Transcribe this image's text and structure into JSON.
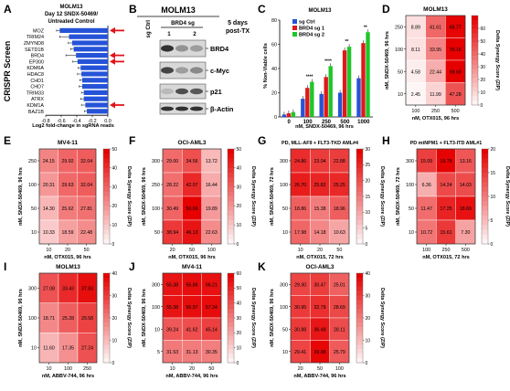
{
  "colors": {
    "bar_blue": "#2553d8",
    "bar_red": "#e01818",
    "bar_green": "#1ec62a",
    "arrow": "#e0141a",
    "hm_high": "#e60000",
    "hm_low": "#ffffff"
  },
  "panel_letters": {
    "a": "A",
    "b": "B",
    "c": "C",
    "d": "D",
    "e": "E",
    "f": "F",
    "g": "G",
    "h": "H",
    "i": "I",
    "j": "J",
    "k": "K"
  },
  "colorbar_label": "Delta Synergy Score (ZIP)",
  "chart_data": [
    {
      "panel": "A",
      "type": "bar",
      "orientation": "horizontal",
      "title": "MOLM13",
      "subtitle_1": "Day 12 SNDX-50469/",
      "subtitle_2": "Untreated Control",
      "ylabel": "CRISPR Screen",
      "xlabel": "Log2 fold-change in sgRNA reads",
      "xticks": [
        "-0.8",
        "-0.6",
        "-0.4",
        "-0.2",
        "0.0"
      ],
      "xlim": [
        -0.8,
        0.0
      ],
      "categories": [
        "MOZ",
        "TRIM24",
        "ZMYND8",
        "SETD1B",
        "BRD4",
        "EP300",
        "KDM6A",
        "HDAC8",
        "CHD1",
        "CHD7",
        "TRIM33",
        "ATRX",
        "KDM1A",
        "BAZ1B"
      ],
      "values": [
        -0.62,
        -0.5,
        -0.46,
        -0.44,
        -0.41,
        -0.39,
        -0.35,
        -0.34,
        -0.33,
        -0.33,
        -0.31,
        -0.31,
        -0.29,
        -0.27
      ],
      "errors": [
        0.04,
        0.12,
        0.05,
        0.04,
        0.13,
        0.06,
        0.03,
        0.05,
        0.03,
        0.04,
        0.03,
        0.04,
        0.05,
        0.03
      ],
      "arrows_on": [
        "MOZ",
        "BRD4",
        "EP300",
        "KDM1A"
      ]
    },
    {
      "panel": "B",
      "type": "blot",
      "title": "MOLM13",
      "lanes": [
        "sg Ctrl",
        "BRD4 sg"
      ],
      "lane_nums": [
        "1",
        "2"
      ],
      "note_1": "5 days",
      "note_2": "post-TX",
      "bands": [
        "BRD4",
        "c-Myc",
        "p21",
        "β-Actin"
      ]
    },
    {
      "panel": "C",
      "type": "bar",
      "title": "MOLM13",
      "ylabel": "% Non-Viable cells",
      "xlabel": "nM, SNDX-50469, 96 hrs",
      "categories": [
        "0",
        "100",
        "250",
        "500",
        "1000"
      ],
      "ylim": [
        0,
        80
      ],
      "yticks": [
        "0",
        "20",
        "40",
        "60",
        "80"
      ],
      "series": [
        {
          "name": "sg Ctrl",
          "values": [
            2,
            15,
            19,
            20,
            32
          ]
        },
        {
          "name": "BRD4 sg 1",
          "values": [
            3,
            24,
            33,
            55,
            61
          ]
        },
        {
          "name": "BRD4 sg 2",
          "values": [
            4,
            29,
            42,
            58,
            70
          ]
        }
      ],
      "significance": [
        "",
        "****",
        "****",
        "**",
        "**"
      ]
    },
    {
      "panel": "D",
      "type": "heatmap",
      "title": "MOLM13",
      "ylabel": "nM, SNDX-50469, 96 hrs",
      "xlabel": "nM, OTX015, 96 hrs",
      "x": [
        "100",
        "250",
        "500"
      ],
      "y": [
        "250",
        "100",
        "50",
        "10"
      ],
      "z": [
        [
          8.89,
          41.61,
          68.77
        ],
        [
          8.11,
          33.95,
          70.16
        ],
        [
          4.58,
          22.44,
          69.6
        ],
        [
          2.45,
          11.99,
          47.28
        ]
      ],
      "zlim": [
        0,
        70
      ],
      "cbticks": [
        "0",
        "10",
        "20",
        "30",
        "40",
        "50",
        "60"
      ]
    },
    {
      "panel": "E",
      "type": "heatmap",
      "title": "MV4-11",
      "ylabel": "nM, SNDX-50469, 96 hrs",
      "xlabel": "nM, OTX015, 96 hrs",
      "x": [
        "10",
        "20",
        "50"
      ],
      "y": [
        "250",
        "100",
        "50",
        "10"
      ],
      "z": [
        [
          24.15,
          29.92,
          32.04
        ],
        [
          20.31,
          29.63,
          32.04
        ],
        [
          14.3,
          25.62,
          27.81
        ],
        [
          10.33,
          18.59,
          22.48
        ]
      ],
      "zlim": [
        0,
        50
      ],
      "cbticks": [
        "0",
        "10",
        "20",
        "30",
        "40",
        "50"
      ]
    },
    {
      "panel": "F",
      "type": "heatmap",
      "title": "OCI-AML3",
      "ylabel": "nM, SNDX-50469, 96 hrs",
      "xlabel": "nM, OTX015, 96 hrs",
      "x": [
        "20",
        "50",
        "100"
      ],
      "y": [
        "300",
        "250",
        "100",
        "50"
      ],
      "z": [
        [
          29.0,
          34.56,
          13.72
        ],
        [
          28.22,
          42.07,
          16.44
        ],
        [
          30.49,
          50.06,
          19.89
        ],
        [
          38.94,
          46.13,
          22.63
        ]
      ],
      "zlim": [
        0,
        50
      ],
      "cbticks": [
        "0",
        "10",
        "20",
        "30",
        "40",
        "50"
      ]
    },
    {
      "panel": "G",
      "type": "heatmap",
      "title": "PD, MLL-AF9 + FLT3-TKD AML#4",
      "ylabel": "nM, SNDX-50469, 72 hrs",
      "xlabel": "nM, OTX015, 72 hrs",
      "x": [
        "10",
        "20",
        "50"
      ],
      "y": [
        "300",
        "100",
        "50",
        "10"
      ],
      "z": [
        [
          24.86,
          23.04,
          22.88
        ],
        [
          26.7,
          25.82,
          25.25
        ],
        [
          18.86,
          15.38,
          18.96
        ],
        [
          17.98,
          14.18,
          10.63
        ]
      ],
      "zlim": [
        0,
        30
      ],
      "cbticks": [
        "0",
        "5",
        "10",
        "15",
        "20",
        "25",
        "30"
      ]
    },
    {
      "panel": "H",
      "type": "heatmap",
      "title": "PD mtNPM1 + FLT3-ITD AML#1",
      "ylabel": "nM, SNDX-50469, 72 hrs",
      "xlabel": "nM, OTX015, 72 hrs",
      "x": [
        "100",
        "250",
        "500"
      ],
      "y": [
        "300",
        "100",
        "50",
        "10"
      ],
      "z": [
        [
          15.09,
          19.75,
          13.16
        ],
        [
          6.36,
          14.24,
          14.03
        ],
        [
          11.47,
          17.25,
          18.69
        ],
        [
          10.72,
          15.61,
          7.3
        ]
      ],
      "zlim": [
        0,
        20
      ],
      "cbticks": [
        "0",
        "5",
        "10",
        "15",
        "20"
      ]
    },
    {
      "panel": "I",
      "type": "heatmap",
      "title": "MOLM13",
      "ylabel": "nM, SNDX-50469, 96 hrs",
      "xlabel": "nM, ABBV-744, 96 hrs",
      "x": [
        "10",
        "100",
        "250"
      ],
      "y": [
        "300",
        "100",
        "10"
      ],
      "z": [
        [
          27.08,
          33.43,
          37.83
        ],
        [
          18.71,
          25.28,
          29.58
        ],
        [
          11.6,
          17.35,
          27.24
        ]
      ],
      "zlim": [
        0,
        40
      ],
      "cbticks": [
        "0",
        "10",
        "20",
        "30",
        "40"
      ]
    },
    {
      "panel": "J",
      "type": "heatmap",
      "title": "MV4-11",
      "ylabel": "nM, SNDX-50469, 96 hrs",
      "xlabel": "nM, ABBV-744, 96 hrs",
      "x": [
        "10",
        "20",
        "50"
      ],
      "y": [
        "300",
        "100",
        "10",
        "5"
      ],
      "z": [
        [
          55.38,
          56.86,
          56.21
        ],
        [
          55.38,
          56.97,
          57.34
        ],
        [
          39.24,
          41.62,
          45.14
        ],
        [
          31.53,
          31.13,
          30.35
        ]
      ],
      "zlim": [
        0,
        60
      ],
      "cbticks": [
        "0",
        "10",
        "20",
        "30",
        "40",
        "50",
        "60"
      ]
    },
    {
      "panel": "K",
      "type": "heatmap",
      "title": "OCI-AML3",
      "ylabel": "nM, SNDX-50469, 96 hrs",
      "xlabel": "nM, ABBV-744, 96 hrs",
      "x": [
        "20",
        "50",
        "100"
      ],
      "y": [
        "300",
        "100",
        "50",
        "10"
      ],
      "z": [
        [
          29.3,
          30.47,
          25.01
        ],
        [
          30.95,
          32.79,
          28.69
        ],
        [
          30.88,
          36.48,
          28.11
        ],
        [
          29.41,
          39.08,
          25.79
        ]
      ],
      "zlim": [
        0,
        40
      ],
      "cbticks": [
        "0",
        "10",
        "20",
        "30",
        "40"
      ]
    }
  ]
}
